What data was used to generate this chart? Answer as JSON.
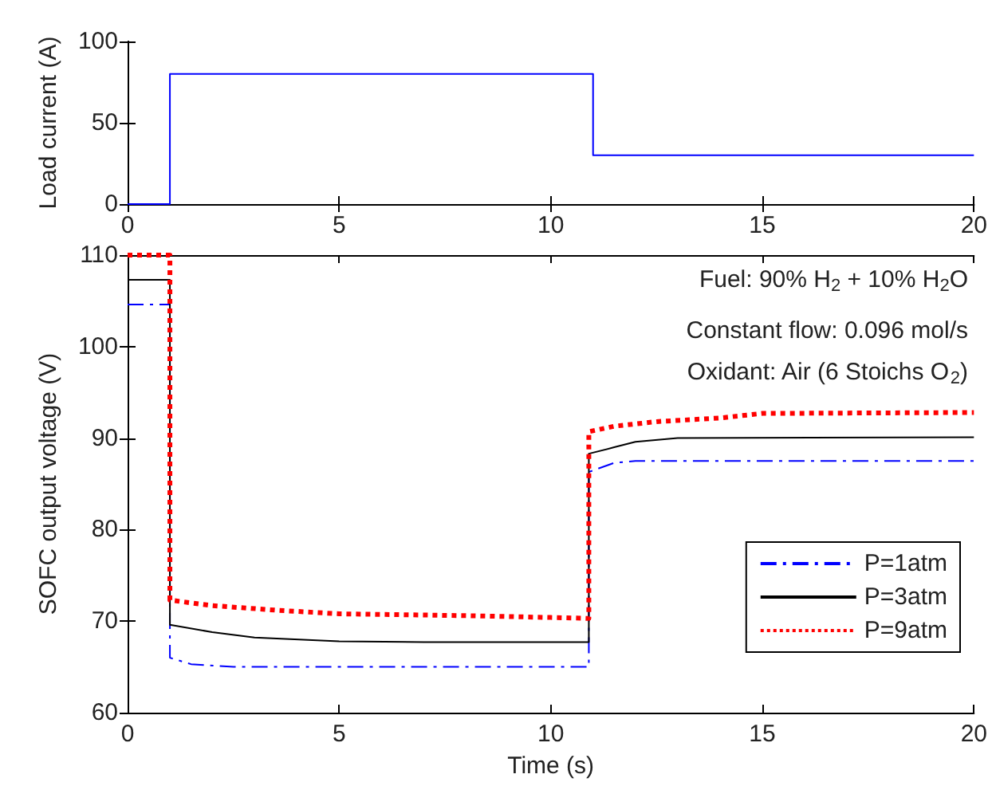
{
  "chart_data": [
    {
      "type": "step",
      "ylabel": "Load current (A)",
      "xlim": [
        0,
        20
      ],
      "xticks": [
        0,
        5,
        10,
        15,
        20
      ],
      "ylim": [
        0,
        100
      ],
      "yticks": [
        0,
        50,
        100
      ],
      "grid": false,
      "legend": false,
      "marker": "none",
      "series": [
        {
          "x": [
            0,
            1,
            11,
            20
          ],
          "values": [
            0,
            80,
            30,
            30
          ],
          "color": "#0000ff"
        }
      ]
    },
    {
      "type": "line",
      "xlabel": "Time (s)",
      "ylabel": "SOFC output voltage (V)",
      "xlim": [
        0,
        20
      ],
      "xticks": [
        0,
        5,
        10,
        15,
        20
      ],
      "ylim": [
        60,
        110
      ],
      "yticks": [
        60,
        70,
        80,
        90,
        100,
        110
      ],
      "grid": false,
      "legend": "bottom right",
      "marker": "none",
      "annotations": [
        "Fuel: 90% H$_{2}$ + 10% H$_{2}$O",
        "Constant flow: 0.096 mol/s",
        "Oxidant: Air (6 Stoichs O$_{2}$)"
      ],
      "series": [
        {
          "name": "P=1atm",
          "color": "#0000ff",
          "line_style": "dashdot",
          "x": [
            0,
            1,
            1,
            1.5,
            2.5,
            10.9,
            10.9,
            11.5,
            12,
            20
          ],
          "values": [
            104.6,
            104.6,
            66,
            65.3,
            65,
            65,
            86.3,
            87.3,
            87.5,
            87.5
          ]
        },
        {
          "name": "P=3atm",
          "color": "#000000",
          "line_style": "solid",
          "x": [
            0,
            1,
            1,
            2,
            3,
            5,
            7,
            10.9,
            10.9,
            11.5,
            12,
            13,
            20
          ],
          "values": [
            107.3,
            107.3,
            69.6,
            68.8,
            68.2,
            67.8,
            67.7,
            67.7,
            88.3,
            89,
            89.6,
            90,
            90.1
          ]
        },
        {
          "name": "P=9atm",
          "color": "#ff0000",
          "line_style": "dotted",
          "x": [
            0,
            1,
            1,
            2,
            3.5,
            5,
            8,
            10,
            10.9,
            10.9,
            11.5,
            12.5,
            14,
            15,
            20
          ],
          "values": [
            110,
            110,
            72.3,
            71.7,
            71.2,
            70.8,
            70.6,
            70.4,
            70.3,
            90.7,
            91.3,
            91.8,
            92.2,
            92.7,
            92.8
          ]
        }
      ]
    }
  ]
}
